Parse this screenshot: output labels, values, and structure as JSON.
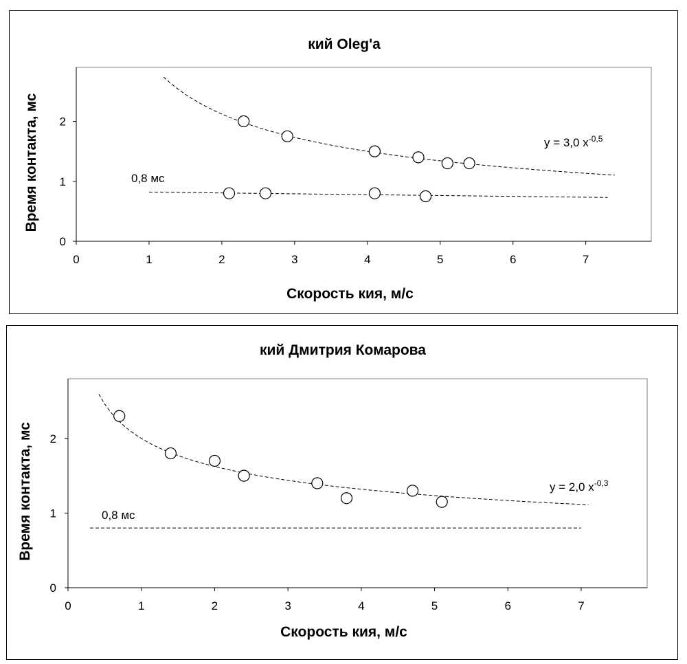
{
  "chart_data": [
    {
      "type": "scatter",
      "title": "кий Oleg'a",
      "xlabel": "Скорость кия, м/с",
      "ylabel": "Время контакта, мс",
      "xlim": [
        0,
        7.9
      ],
      "ylim": [
        0,
        2.9
      ],
      "xticks": [
        "0",
        "1",
        "2",
        "3",
        "4",
        "5",
        "6",
        "7"
      ],
      "yticks": [
        "0",
        "1",
        "2"
      ],
      "grid": false,
      "series": [
        {
          "marker": "open-circle",
          "points": [
            [
              2.3,
              2.0
            ],
            [
              2.9,
              1.75
            ],
            [
              4.1,
              1.5
            ],
            [
              4.7,
              1.4
            ],
            [
              5.1,
              1.3
            ],
            [
              5.4,
              1.3
            ]
          ]
        },
        {
          "marker": "open-circle",
          "points": [
            [
              2.1,
              0.8
            ],
            [
              2.6,
              0.8
            ],
            [
              4.1,
              0.8
            ],
            [
              4.8,
              0.75
            ]
          ]
        }
      ],
      "trendlines": [
        {
          "kind": "power",
          "a": 3.0,
          "b": -0.5,
          "x_range": [
            1.2,
            7.4
          ],
          "label_main": "y = 3,0 x",
          "label_exp": "-0,5"
        },
        {
          "kind": "linear",
          "points": [
            [
              1.0,
              0.82
            ],
            [
              7.3,
              0.73
            ]
          ],
          "label": "0,8 мс"
        }
      ]
    },
    {
      "type": "scatter",
      "title": "кий Дмитрия Комарова",
      "xlabel": "Скорость кия, м/с",
      "ylabel": "Время контакта, мс",
      "xlim": [
        0,
        7.9
      ],
      "ylim": [
        0,
        2.8
      ],
      "xticks": [
        "0",
        "1",
        "2",
        "3",
        "4",
        "5",
        "6",
        "7"
      ],
      "yticks": [
        "0",
        "1",
        "2"
      ],
      "grid": false,
      "series": [
        {
          "marker": "open-circle",
          "points": [
            [
              0.7,
              2.3
            ],
            [
              1.4,
              1.8
            ],
            [
              2.0,
              1.7
            ],
            [
              2.4,
              1.5
            ],
            [
              3.4,
              1.4
            ],
            [
              3.8,
              1.2
            ],
            [
              4.7,
              1.3
            ],
            [
              5.1,
              1.15
            ]
          ]
        }
      ],
      "trendlines": [
        {
          "kind": "power",
          "a": 2.0,
          "b": -0.3,
          "x_range": [
            0.42,
            7.1
          ],
          "label_main": "y = 2,0 x",
          "label_exp": "-0,3"
        },
        {
          "kind": "linear",
          "points": [
            [
              0.3,
              0.8
            ],
            [
              7.0,
              0.8
            ]
          ],
          "label": "0,8 мс"
        }
      ]
    }
  ]
}
